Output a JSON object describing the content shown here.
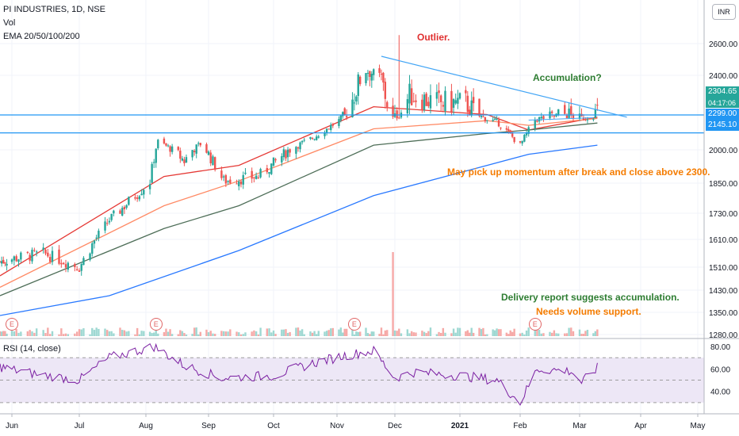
{
  "symbol_line": "PI INDUSTRIES, 1D, NSE",
  "volume_label": "Vol",
  "ema_label": "EMA 20/50/100/200",
  "rsi_label": "RSI (14, close)",
  "currency_label": "INR",
  "earnings_marker": "E",
  "price_tags": {
    "last_price": "2304.65",
    "countdown": "04:17:06",
    "support_1": "2299.00",
    "support_2": "2145.10"
  },
  "annotations": {
    "outlier": "Outlier.",
    "accumulation": "Accumulation?",
    "momentum": "May pick up momentum after break and close above 2300.",
    "delivery": "Delivery report suggests accumulation.",
    "volume_support": "Needs volume support."
  },
  "colors": {
    "up": "#26a69a",
    "down": "#ef5350",
    "ema20": "#e53935",
    "ema50": "#ff8a65",
    "ema100": "#4e6e58",
    "ema200": "#2979ff",
    "trendline": "#42a5f5",
    "hline": "#2196f3",
    "rsi_line": "#7b1fa2",
    "rsi_band": "#ede7f6"
  },
  "chart_data": {
    "type": "candlestick",
    "price_axis_ticks": [
      "2600.00",
      "2400.00",
      "2000.00",
      "1850.00",
      "1730.00",
      "1610.00",
      "1510.00",
      "1430.00",
      "1350.00",
      "1280.00"
    ],
    "time_axis_ticks": [
      "Jun",
      "Jul",
      "Aug",
      "Sep",
      "Oct",
      "Nov",
      "Dec",
      "2021",
      "Feb",
      "Mar",
      "Apr",
      "May"
    ],
    "rsi_axis_ticks": [
      "80.00",
      "60.00",
      "40.00"
    ],
    "price_range": [
      1280,
      2800
    ],
    "horizontal_levels": [
      2299,
      2145.1
    ],
    "trendline": [
      {
        "date": "2020-11-24",
        "price": 2520
      },
      {
        "date": "2021-03-25",
        "price": 2280
      }
    ],
    "close_anchors": [
      {
        "date": "2020-05-25",
        "close": 1530
      },
      {
        "date": "2020-06-15",
        "close": 1560
      },
      {
        "date": "2020-07-01",
        "close": 1510
      },
      {
        "date": "2020-07-15",
        "close": 1700
      },
      {
        "date": "2020-08-03",
        "close": 1860
      },
      {
        "date": "2020-08-07",
        "close": 2070
      },
      {
        "date": "2020-08-20",
        "close": 1950
      },
      {
        "date": "2020-08-28",
        "close": 2050
      },
      {
        "date": "2020-09-08",
        "close": 1860
      },
      {
        "date": "2020-09-24",
        "close": 1880
      },
      {
        "date": "2020-10-06",
        "close": 1980
      },
      {
        "date": "2020-10-20",
        "close": 2100
      },
      {
        "date": "2020-11-02",
        "close": 2250
      },
      {
        "date": "2020-11-16",
        "close": 2430
      },
      {
        "date": "2020-11-24",
        "close": 2390
      },
      {
        "date": "2020-11-30",
        "close": 2270
      },
      {
        "date": "2020-12-08",
        "close": 2350
      },
      {
        "date": "2020-12-21",
        "close": 2330
      },
      {
        "date": "2021-01-04",
        "close": 2330
      },
      {
        "date": "2021-01-21",
        "close": 2230
      },
      {
        "date": "2021-02-01",
        "close": 2040
      },
      {
        "date": "2021-02-08",
        "close": 2260
      },
      {
        "date": "2021-02-22",
        "close": 2300
      },
      {
        "date": "2021-03-02",
        "close": 2270
      },
      {
        "date": "2021-03-10",
        "close": 2305
      }
    ],
    "outlier_high": {
      "date": "2020-12-03",
      "price": 2650
    },
    "volume_spike": {
      "date": "2020-11-30"
    },
    "ema_series": [
      {
        "name": "EMA 20",
        "points": [
          {
            "date": "2020-05-25",
            "v": 1480
          },
          {
            "date": "2020-08-10",
            "v": 1880
          },
          {
            "date": "2020-09-15",
            "v": 1930
          },
          {
            "date": "2020-11-20",
            "v": 2320
          },
          {
            "date": "2021-01-15",
            "v": 2300
          },
          {
            "date": "2021-02-05",
            "v": 2170
          },
          {
            "date": "2021-03-10",
            "v": 2280
          }
        ]
      },
      {
        "name": "EMA 50",
        "points": [
          {
            "date": "2020-05-25",
            "v": 1440
          },
          {
            "date": "2020-08-10",
            "v": 1760
          },
          {
            "date": "2020-09-15",
            "v": 1860
          },
          {
            "date": "2020-11-20",
            "v": 2180
          },
          {
            "date": "2021-01-15",
            "v": 2250
          },
          {
            "date": "2021-02-05",
            "v": 2210
          },
          {
            "date": "2021-03-10",
            "v": 2270
          }
        ]
      },
      {
        "name": "EMA 100",
        "points": [
          {
            "date": "2020-05-25",
            "v": 1410
          },
          {
            "date": "2020-08-10",
            "v": 1660
          },
          {
            "date": "2020-09-15",
            "v": 1760
          },
          {
            "date": "2020-11-20",
            "v": 2040
          },
          {
            "date": "2021-01-15",
            "v": 2140
          },
          {
            "date": "2021-02-05",
            "v": 2170
          },
          {
            "date": "2021-03-10",
            "v": 2230
          }
        ]
      },
      {
        "name": "EMA 200",
        "points": [
          {
            "date": "2020-05-25",
            "v": 1340
          },
          {
            "date": "2020-07-15",
            "v": 1410
          },
          {
            "date": "2020-09-15",
            "v": 1570
          },
          {
            "date": "2020-11-20",
            "v": 1800
          },
          {
            "date": "2021-01-15",
            "v": 1930
          },
          {
            "date": "2021-02-05",
            "v": 1980
          },
          {
            "date": "2021-03-10",
            "v": 2040
          }
        ]
      }
    ],
    "rsi_anchors": [
      {
        "date": "2020-05-25",
        "v": 62
      },
      {
        "date": "2020-06-10",
        "v": 56
      },
      {
        "date": "2020-07-01",
        "v": 50
      },
      {
        "date": "2020-07-15",
        "v": 70
      },
      {
        "date": "2020-08-05",
        "v": 80
      },
      {
        "date": "2020-08-20",
        "v": 63
      },
      {
        "date": "2020-09-07",
        "v": 52
      },
      {
        "date": "2020-10-01",
        "v": 54
      },
      {
        "date": "2020-10-20",
        "v": 65
      },
      {
        "date": "2020-11-05",
        "v": 72
      },
      {
        "date": "2020-11-20",
        "v": 76
      },
      {
        "date": "2020-12-01",
        "v": 52
      },
      {
        "date": "2020-12-10",
        "v": 57
      },
      {
        "date": "2021-01-01",
        "v": 54
      },
      {
        "date": "2021-01-20",
        "v": 50
      },
      {
        "date": "2021-02-01",
        "v": 30
      },
      {
        "date": "2021-02-09",
        "v": 60
      },
      {
        "date": "2021-02-25",
        "v": 58
      },
      {
        "date": "2021-03-02",
        "v": 48
      },
      {
        "date": "2021-03-10",
        "v": 61
      }
    ],
    "rsi_bands": [
      30,
      70
    ],
    "earnings_dates": [
      "2020-06-01",
      "2020-08-06",
      "2020-11-10",
      "2021-02-08"
    ]
  }
}
